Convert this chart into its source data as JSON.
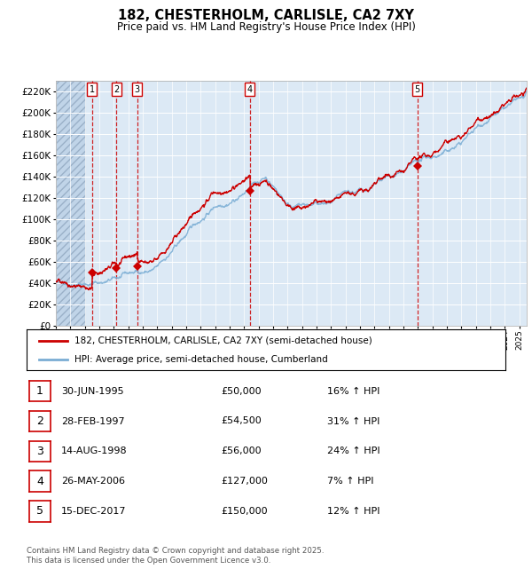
{
  "title": "182, CHESTERHOLM, CARLISLE, CA2 7XY",
  "subtitle": "Price paid vs. HM Land Registry's House Price Index (HPI)",
  "ylim": [
    0,
    230000
  ],
  "yticks": [
    0,
    20000,
    40000,
    60000,
    80000,
    100000,
    120000,
    140000,
    160000,
    180000,
    200000,
    220000
  ],
  "plot_bg_color": "#dce9f5",
  "grid_color": "#ffffff",
  "red_line_color": "#cc0000",
  "blue_line_color": "#7aadd4",
  "vline_color": "#cc0000",
  "transactions": [
    {
      "label": "1",
      "date_num": 1995.5,
      "price": 50000
    },
    {
      "label": "2",
      "date_num": 1997.17,
      "price": 54500
    },
    {
      "label": "3",
      "date_num": 1998.62,
      "price": 56000
    },
    {
      "label": "4",
      "date_num": 2006.4,
      "price": 127000
    },
    {
      "label": "5",
      "date_num": 2017.96,
      "price": 150000
    }
  ],
  "transaction_table": [
    [
      "1",
      "30-JUN-1995",
      "£50,000",
      "16% ↑ HPI"
    ],
    [
      "2",
      "28-FEB-1997",
      "£54,500",
      "31% ↑ HPI"
    ],
    [
      "3",
      "14-AUG-1998",
      "£56,000",
      "24% ↑ HPI"
    ],
    [
      "4",
      "26-MAY-2006",
      "£127,000",
      "7% ↑ HPI"
    ],
    [
      "5",
      "15-DEC-2017",
      "£150,000",
      "12% ↑ HPI"
    ]
  ],
  "legend_entries": [
    "182, CHESTERHOLM, CARLISLE, CA2 7XY (semi-detached house)",
    "HPI: Average price, semi-detached house, Cumberland"
  ],
  "footer": "Contains HM Land Registry data © Crown copyright and database right 2025.\nThis data is licensed under the Open Government Licence v3.0.",
  "xmin": 1993.0,
  "xmax": 2025.5
}
